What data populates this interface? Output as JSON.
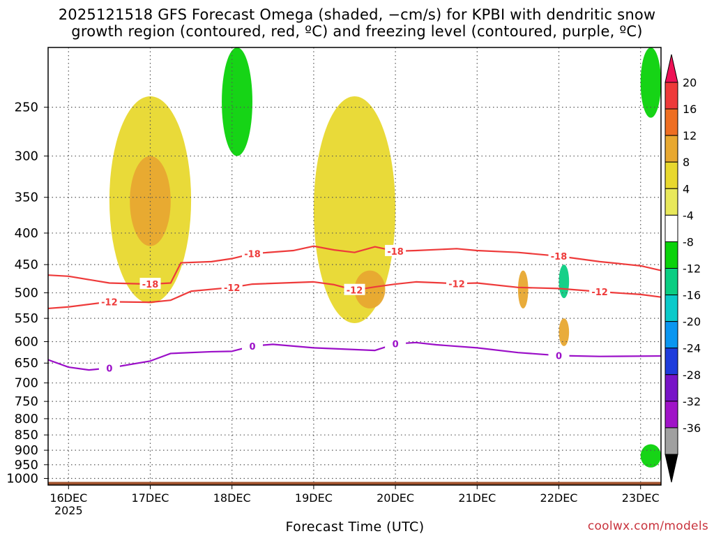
{
  "title": {
    "line1": "2025121518 GFS Forecast Omega (shaded, −cm/s) for KPBI with dendritic snow",
    "line2": "growth region (contoured, red, ºC) and freezing level (contoured, purple, ºC)"
  },
  "footer": {
    "xlabel": "Forecast Time (UTC)",
    "credit": "coolwx.com/models"
  },
  "chart_data": {
    "type": "heatmap",
    "xlabel": "Forecast Time (UTC)",
    "ylabel": "",
    "y_scale": "log-pressure",
    "y_axis": "pressure (hPa)",
    "y_range": [
      1025,
      200
    ],
    "x_range": [
      "2025-12-15 18Z",
      "2025-12-23 06Z"
    ],
    "x_ticks": [
      {
        "label": "16DEC",
        "sublabel": "2025",
        "time": "2025-12-16 00Z"
      },
      {
        "label": "17DEC",
        "time": "2025-12-17 00Z"
      },
      {
        "label": "18DEC",
        "time": "2025-12-18 00Z"
      },
      {
        "label": "19DEC",
        "time": "2025-12-19 00Z"
      },
      {
        "label": "20DEC",
        "time": "2025-12-20 00Z"
      },
      {
        "label": "21DEC",
        "time": "2025-12-21 00Z"
      },
      {
        "label": "22DEC",
        "time": "2025-12-22 00Z"
      },
      {
        "label": "23DEC",
        "time": "2025-12-23 00Z"
      }
    ],
    "y_ticks": [
      "250",
      "300",
      "350",
      "400",
      "450",
      "500",
      "550",
      "600",
      "650",
      "700",
      "750",
      "800",
      "850",
      "900",
      "950",
      "1000"
    ],
    "grid": true,
    "colorbar": {
      "labels": [
        "20",
        "16",
        "12",
        "8",
        "4",
        "-4",
        "-8",
        "-12",
        "-16",
        "-20",
        "-24",
        "-28",
        "-32",
        "-36"
      ],
      "colors": [
        "#ee1256",
        "#ee3a3a",
        "#ee6e22",
        "#e8a830",
        "#e8d82e",
        "#e8e85a",
        "#ffffff",
        "#0ad20a",
        "#0acd82",
        "#0acaca",
        "#0a96f0",
        "#1e3cdc",
        "#7814c8",
        "#a014c8",
        "#a0a0a0",
        "#000000"
      ]
    },
    "contours": [
      {
        "label": "-18",
        "color": "#ee3a3a",
        "labels_shown": [
          "-18",
          "-18",
          "-18",
          "-18"
        ],
        "points": [
          [
            "2025-12-15 18Z",
            468
          ],
          [
            "2025-12-16 00Z",
            470
          ],
          [
            "2025-12-16 12Z",
            482
          ],
          [
            "2025-12-17 00Z",
            484
          ],
          [
            "2025-12-17 06Z",
            482
          ],
          [
            "2025-12-17 09Z",
            447
          ],
          [
            "2025-12-17 18Z",
            445
          ],
          [
            "2025-12-18 00Z",
            440
          ],
          [
            "2025-12-18 06Z",
            432
          ],
          [
            "2025-12-18 18Z",
            427
          ],
          [
            "2025-12-19 00Z",
            420
          ],
          [
            "2025-12-19 06Z",
            426
          ],
          [
            "2025-12-19 12Z",
            430
          ],
          [
            "2025-12-19 18Z",
            421
          ],
          [
            "2025-12-20 00Z",
            428
          ],
          [
            "2025-12-20 06Z",
            427
          ],
          [
            "2025-12-20 18Z",
            424
          ],
          [
            "2025-12-21 00Z",
            427
          ],
          [
            "2025-12-21 12Z",
            430
          ],
          [
            "2025-12-22 00Z",
            436
          ],
          [
            "2025-12-22 12Z",
            445
          ],
          [
            "2025-12-23 00Z",
            452
          ],
          [
            "2025-12-23 06Z",
            460
          ]
        ]
      },
      {
        "label": "-12",
        "color": "#ee3a3a",
        "labels_shown": [
          "-12",
          "-12",
          "-12",
          "-12",
          "-12"
        ],
        "points": [
          [
            "2025-12-15 18Z",
            530
          ],
          [
            "2025-12-16 00Z",
            527
          ],
          [
            "2025-12-16 12Z",
            517
          ],
          [
            "2025-12-17 00Z",
            518
          ],
          [
            "2025-12-17 06Z",
            514
          ],
          [
            "2025-12-17 12Z",
            497
          ],
          [
            "2025-12-18 00Z",
            490
          ],
          [
            "2025-12-18 06Z",
            484
          ],
          [
            "2025-12-19 00Z",
            480
          ],
          [
            "2025-12-19 06Z",
            485
          ],
          [
            "2025-12-19 12Z",
            495
          ],
          [
            "2025-12-19 18Z",
            489
          ],
          [
            "2025-12-20 00Z",
            484
          ],
          [
            "2025-12-20 06Z",
            480
          ],
          [
            "2025-12-20 18Z",
            483
          ],
          [
            "2025-12-21 00Z",
            482
          ],
          [
            "2025-12-21 12Z",
            490
          ],
          [
            "2025-12-22 00Z",
            492
          ],
          [
            "2025-12-22 12Z",
            498
          ],
          [
            "2025-12-23 00Z",
            503
          ],
          [
            "2025-12-23 06Z",
            508
          ]
        ]
      },
      {
        "label": "0",
        "color": "#9b0fc8",
        "labels_shown": [
          "0",
          "0",
          "0",
          "0"
        ],
        "points": [
          [
            "2025-12-15 18Z",
            642
          ],
          [
            "2025-12-16 00Z",
            660
          ],
          [
            "2025-12-16 06Z",
            667
          ],
          [
            "2025-12-16 12Z",
            662
          ],
          [
            "2025-12-17 00Z",
            645
          ],
          [
            "2025-12-17 06Z",
            627
          ],
          [
            "2025-12-17 18Z",
            623
          ],
          [
            "2025-12-18 00Z",
            622
          ],
          [
            "2025-12-18 06Z",
            610
          ],
          [
            "2025-12-18 12Z",
            606
          ],
          [
            "2025-12-19 00Z",
            614
          ],
          [
            "2025-12-19 12Z",
            618
          ],
          [
            "2025-12-19 18Z",
            620
          ],
          [
            "2025-12-20 00Z",
            605
          ],
          [
            "2025-12-20 06Z",
            602
          ],
          [
            "2025-12-20 12Z",
            607
          ],
          [
            "2025-12-21 00Z",
            614
          ],
          [
            "2025-12-21 12Z",
            625
          ],
          [
            "2025-12-22 00Z",
            632
          ],
          [
            "2025-12-22 12Z",
            634
          ],
          [
            "2025-12-23 06Z",
            633
          ]
        ]
      }
    ],
    "shaded_regions": [
      {
        "color": "#e8d82e",
        "t0": "2025-12-16 12Z",
        "t1": "2025-12-17 12Z",
        "p0": 240,
        "p1": 520
      },
      {
        "color": "#e8a830",
        "t0": "2025-12-16 18Z",
        "t1": "2025-12-17 06Z",
        "p0": 300,
        "p1": 420
      },
      {
        "color": "#e8d82e",
        "t0": "2025-12-19 00Z",
        "t1": "2025-12-20 00Z",
        "p0": 240,
        "p1": 560
      },
      {
        "color": "#e8a830",
        "t0": "2025-12-19 12Z",
        "t1": "2025-12-19 21Z",
        "p0": 460,
        "p1": 530
      },
      {
        "color": "#0ad20a",
        "t0": "2025-12-17 21Z",
        "t1": "2025-12-18 06Z",
        "p0": 200,
        "p1": 300
      },
      {
        "color": "#0ad20a",
        "t0": "2025-12-23 00Z",
        "t1": "2025-12-23 06Z",
        "p0": 200,
        "p1": 260
      },
      {
        "color": "#0ad20a",
        "t0": "2025-12-23 00Z",
        "t1": "2025-12-23 06Z",
        "p0": 880,
        "p1": 960
      },
      {
        "color": "#e8a830",
        "t0": "2025-12-21 12Z",
        "t1": "2025-12-21 15Z",
        "p0": 460,
        "p1": 530
      },
      {
        "color": "#0acd82",
        "t0": "2025-12-22 00Z",
        "t1": "2025-12-22 03Z",
        "p0": 450,
        "p1": 510
      },
      {
        "color": "#e8a830",
        "t0": "2025-12-22 00Z",
        "t1": "2025-12-22 03Z",
        "p0": 550,
        "p1": 610
      }
    ]
  }
}
